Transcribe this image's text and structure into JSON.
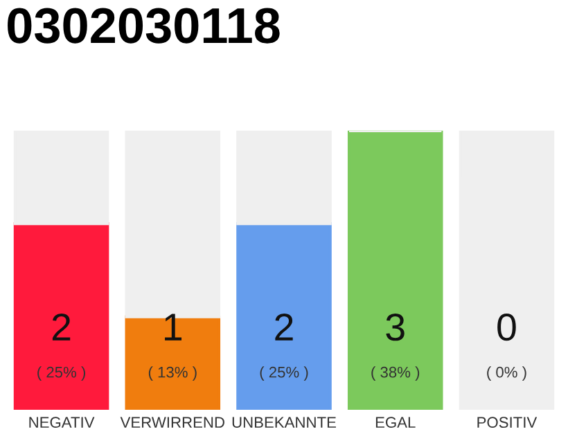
{
  "chart_data": {
    "type": "bar",
    "title": "0302030118",
    "categories": [
      "NEGATIV",
      "VERWIRREND",
      "UNBEKANNTE",
      "EGAL",
      "POSITIV"
    ],
    "stacked": true,
    "ylim": [
      0,
      3
    ],
    "tick_labels": "x",
    "grid": false,
    "series": [
      {
        "colors": [
          "#ff1a3c",
          "#f07d0e",
          "#659ded",
          "#7cc95c",
          "#1ea83c"
        ],
        "values": [
          2,
          1,
          2,
          3,
          0
        ],
        "value_labels": [
          "2\n( 25% )",
          "1\n( 13% )",
          "2\n( 25% )",
          "3\n( 38% )",
          "0\n( 0% )"
        ]
      },
      {
        "color": "#efefef",
        "values": [
          1,
          2,
          1,
          0,
          3
        ]
      }
    ]
  }
}
